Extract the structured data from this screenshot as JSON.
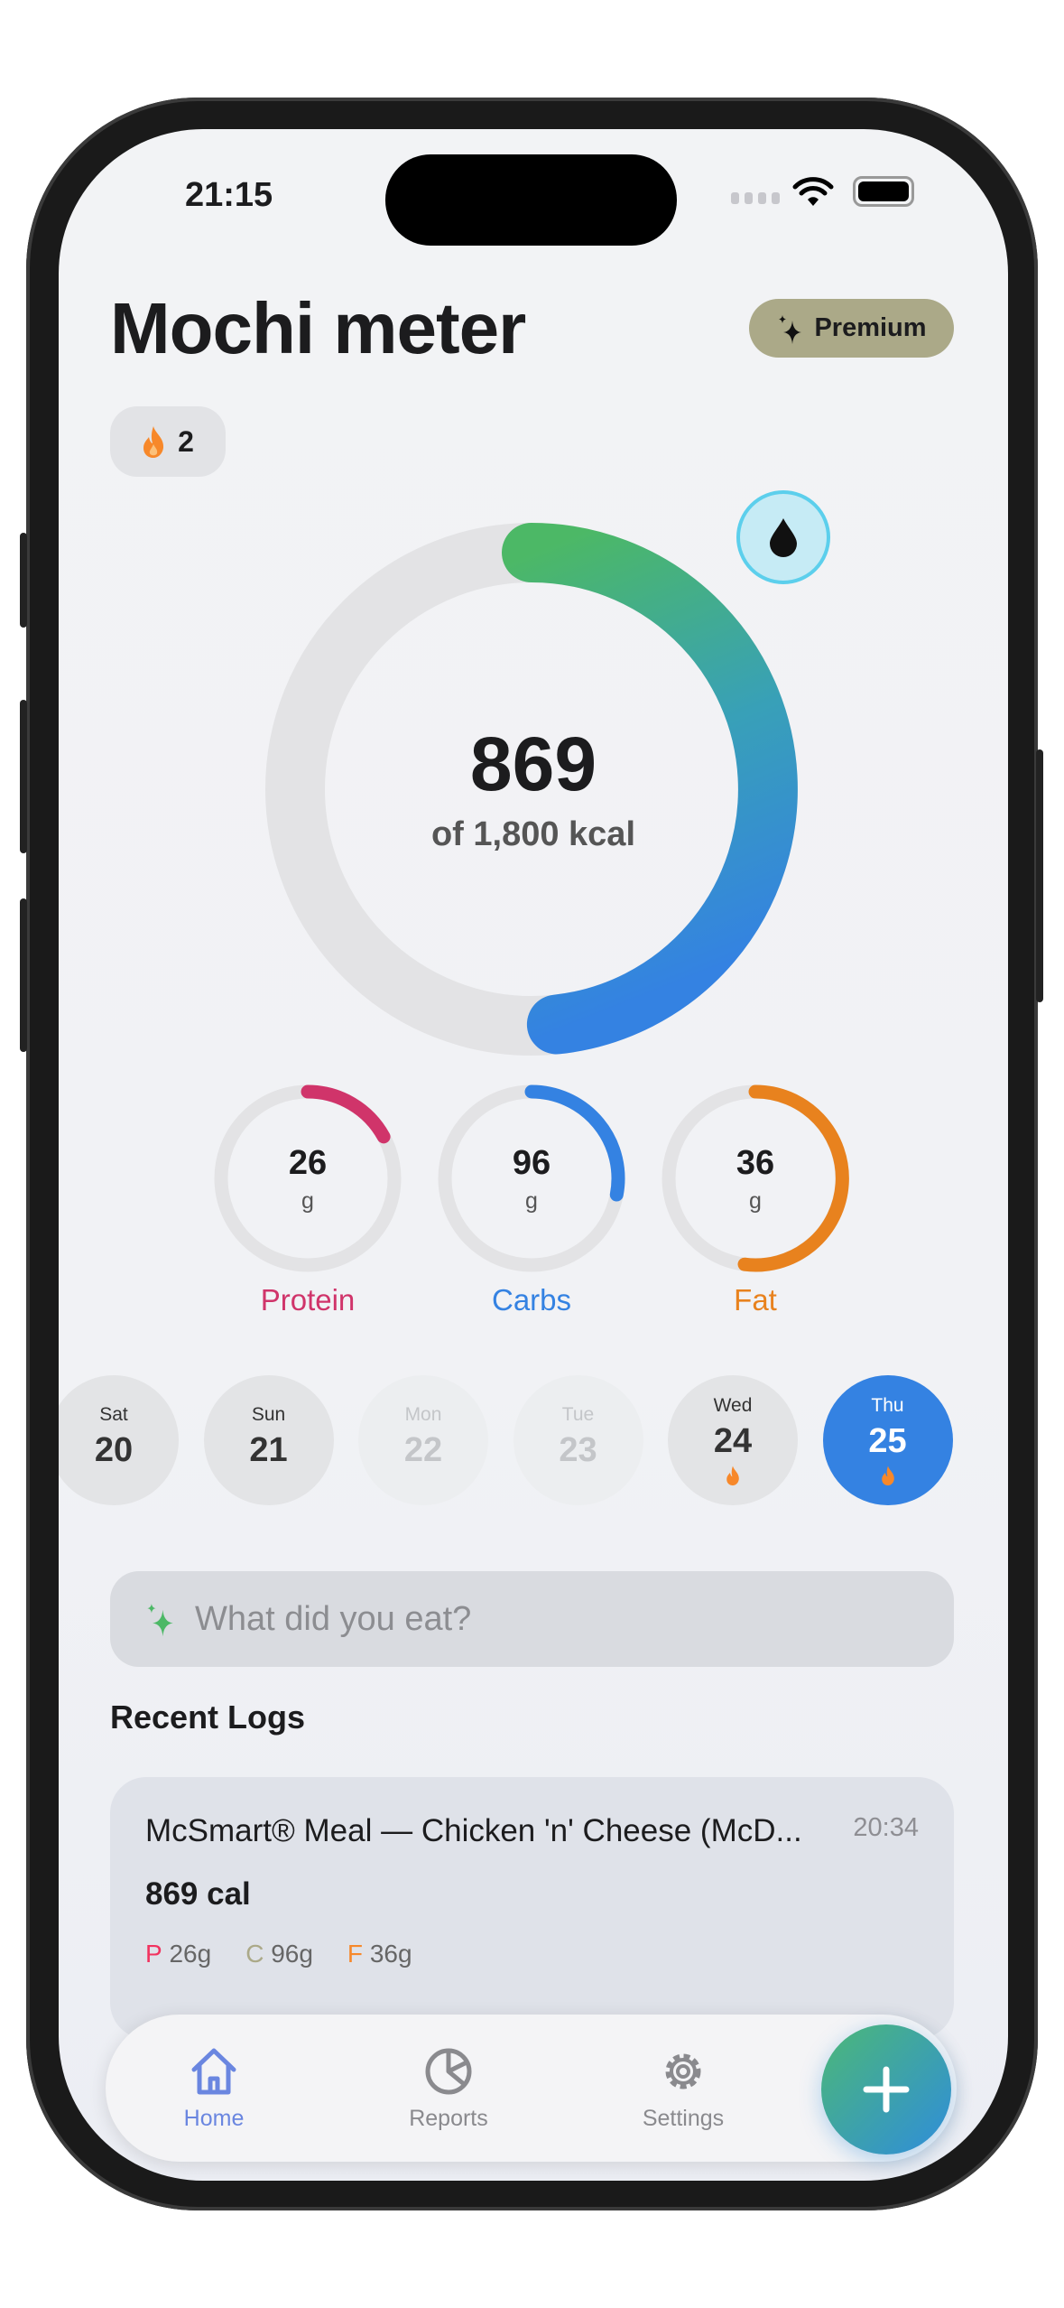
{
  "status_bar": {
    "time": "21:15"
  },
  "header": {
    "title": "Mochi meter",
    "premium_label": "Premium",
    "streak_count": "2"
  },
  "calories": {
    "consumed": "869",
    "goal_label": "of 1,800 kcal",
    "progress": 0.483,
    "gradient": [
      "#4cb866",
      "#3482e2"
    ]
  },
  "macros": [
    {
      "value": "26",
      "unit": "g",
      "label": "Protein",
      "color": "#d0346a",
      "progress": 0.17
    },
    {
      "value": "96",
      "unit": "g",
      "label": "Carbs",
      "color": "#3482e2",
      "progress": 0.28
    },
    {
      "value": "36",
      "unit": "g",
      "label": "Fat",
      "color": "#e8821e",
      "progress": 0.52
    }
  ],
  "days": [
    {
      "name": "Sat",
      "date": "20",
      "state": "normal",
      "streak": false
    },
    {
      "name": "Sun",
      "date": "21",
      "state": "normal",
      "streak": false
    },
    {
      "name": "Mon",
      "date": "22",
      "state": "faded",
      "streak": false
    },
    {
      "name": "Tue",
      "date": "23",
      "state": "faded",
      "streak": false
    },
    {
      "name": "Wed",
      "date": "24",
      "state": "normal",
      "streak": true
    },
    {
      "name": "Thu",
      "date": "25",
      "state": "selected",
      "streak": true
    }
  ],
  "food_input": {
    "placeholder": "What did you eat?"
  },
  "recent_logs": {
    "title": "Recent Logs",
    "items": [
      {
        "name": "McSmart® Meal — Chicken 'n' Cheese (McD...",
        "time": "20:34",
        "calories": "869 cal",
        "p_label": "P",
        "p": "26g",
        "c_label": "C",
        "c": "96g",
        "f_label": "F",
        "f": "36g"
      }
    ]
  },
  "tabs": [
    {
      "label": "Home",
      "icon": "home-icon",
      "active": true
    },
    {
      "label": "Reports",
      "icon": "pie-chart-icon"
    },
    {
      "label": "Settings",
      "icon": "gear-icon"
    }
  ],
  "colors": {
    "accent": "#3482e2",
    "premium": "#aba988",
    "tab_active": "#6a86e0",
    "flame": "#f7882a"
  }
}
